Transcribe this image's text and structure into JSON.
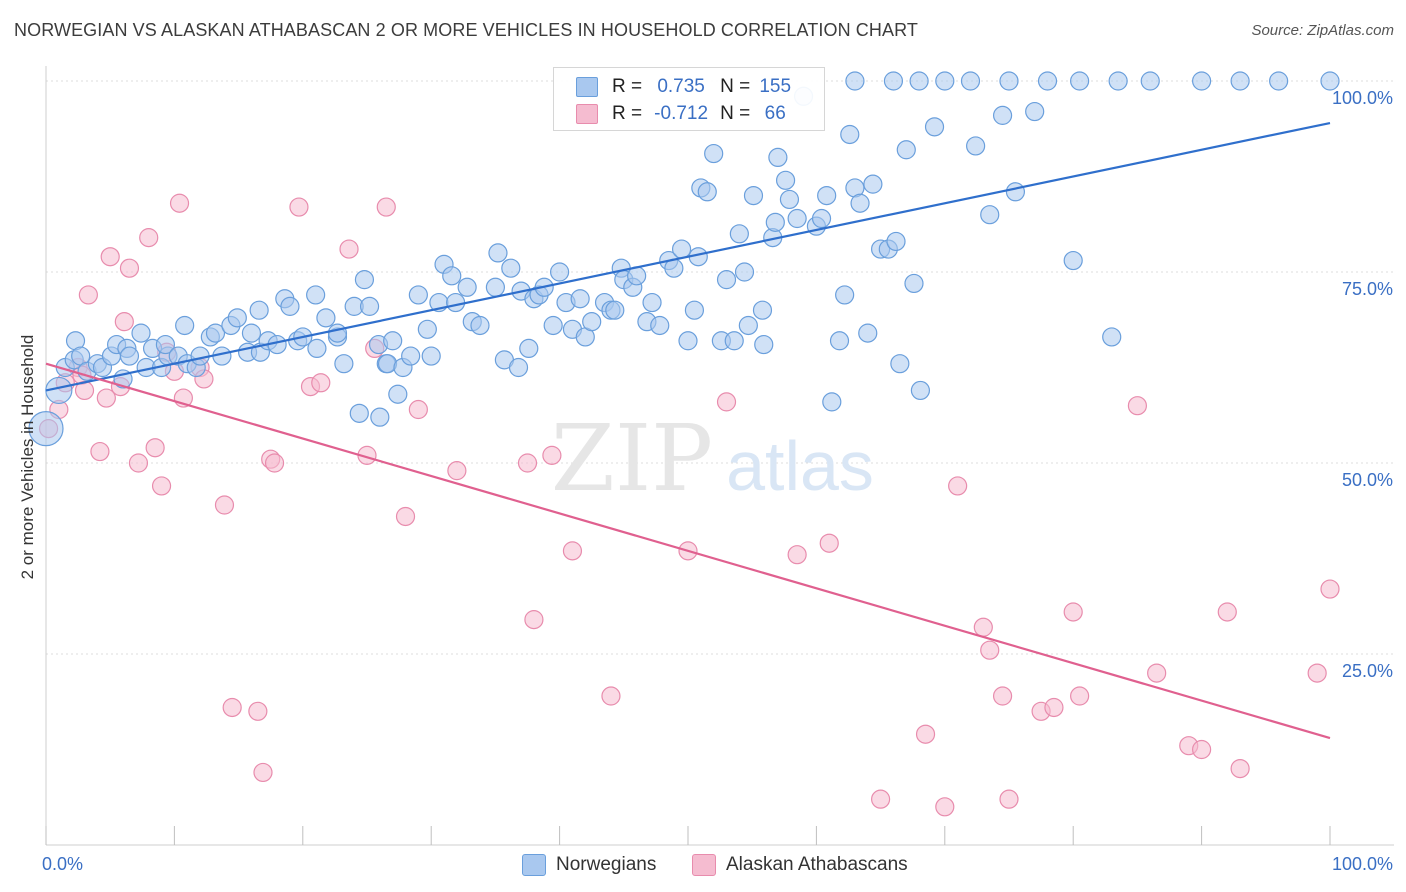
{
  "title": "NORWEGIAN VS ALASKAN ATHABASCAN 2 OR MORE VEHICLES IN HOUSEHOLD CORRELATION CHART",
  "source": "Source: ZipAtlas.com",
  "watermark": {
    "zip": "ZIP",
    "atlas": "atlas"
  },
  "colors": {
    "blue_fill": "#a9c8ef",
    "blue_stroke": "#6a9fdc",
    "blue_line": "#2f6fcc",
    "pink_fill": "#f5bcd0",
    "pink_stroke": "#e88cad",
    "pink_line": "#e0608f",
    "axis_label": "#3a6fc4",
    "grid": "#dddddd"
  },
  "legend": {
    "rows": [
      {
        "r_label": "R =",
        "r_value": "0.735",
        "n_label": "N =",
        "n_value": "155",
        "color": "#a9c8ef",
        "border": "#6a9fdc"
      },
      {
        "r_label": "R =",
        "r_value": "-0.712",
        "n_label": "N =",
        "n_value": "66",
        "color": "#f5bcd0",
        "border": "#e88cad"
      }
    ]
  },
  "bottom_legend": {
    "series1": "Norwegians",
    "series2": "Alaskan Athabascans"
  },
  "chart_data": {
    "type": "scatter",
    "title": "NORWEGIAN VS ALASKAN ATHABASCAN 2 OR MORE VEHICLES IN HOUSEHOLD CORRELATION CHART",
    "xlabel": "",
    "ylabel": "2 or more Vehicles in Household",
    "xlim": [
      0,
      100
    ],
    "ylim": [
      0,
      105
    ],
    "x_tick_labels": [
      "0.0%",
      "100.0%"
    ],
    "y_tick_labels": [
      "100.0%",
      "75.0%",
      "50.0%",
      "25.0%"
    ],
    "y_ticks": [
      100,
      75,
      50,
      25
    ],
    "grid": true,
    "legend_position": "top-center",
    "series": [
      {
        "name": "Norwegians",
        "r": 0.735,
        "n": 155,
        "trend": {
          "x": [
            0,
            100
          ],
          "y": [
            59.5,
            94.5
          ]
        },
        "points": [
          [
            1,
            59.5
          ],
          [
            1.5,
            62.5
          ],
          [
            2.2,
            63.5
          ],
          [
            2.3,
            66
          ],
          [
            2.7,
            64
          ],
          [
            3.2,
            62
          ],
          [
            4,
            63
          ],
          [
            4.4,
            62.5
          ],
          [
            5.1,
            64
          ],
          [
            6,
            61
          ],
          [
            5.5,
            65.5
          ],
          [
            6.3,
            65
          ],
          [
            6.5,
            64
          ],
          [
            7.4,
            67
          ],
          [
            7.8,
            62.5
          ],
          [
            8.3,
            65
          ],
          [
            9,
            62.5
          ],
          [
            9.5,
            64
          ],
          [
            9.3,
            65.5
          ],
          [
            10.3,
            64
          ],
          [
            10.8,
            68
          ],
          [
            11,
            63
          ],
          [
            11.7,
            62.5
          ],
          [
            12,
            64
          ],
          [
            12.8,
            66.5
          ],
          [
            13.2,
            67
          ],
          [
            13.7,
            64
          ],
          [
            14.4,
            68
          ],
          [
            14.9,
            69
          ],
          [
            15.7,
            64.5
          ],
          [
            16,
            67
          ],
          [
            16.6,
            70
          ],
          [
            16.7,
            64.5
          ],
          [
            17.3,
            66
          ],
          [
            18,
            65.5
          ],
          [
            18.6,
            71.5
          ],
          [
            19,
            70.5
          ],
          [
            19.6,
            66
          ],
          [
            20,
            66.5
          ],
          [
            21,
            72
          ],
          [
            21.1,
            65
          ],
          [
            21.8,
            69
          ],
          [
            22.7,
            66.5
          ],
          [
            22.7,
            67
          ],
          [
            23.2,
            63
          ],
          [
            24,
            70.5
          ],
          [
            24.4,
            56.5
          ],
          [
            24.8,
            74
          ],
          [
            25.2,
            70.5
          ],
          [
            25.9,
            65.5
          ],
          [
            26,
            56
          ],
          [
            26.5,
            63
          ],
          [
            26.6,
            63
          ],
          [
            27,
            66
          ],
          [
            27.4,
            59
          ],
          [
            27.8,
            62.5
          ],
          [
            28.4,
            64
          ],
          [
            29,
            72
          ],
          [
            29.7,
            67.5
          ],
          [
            30,
            64
          ],
          [
            30.6,
            71
          ],
          [
            31,
            76
          ],
          [
            31.6,
            74.5
          ],
          [
            31.9,
            71
          ],
          [
            32.8,
            73
          ],
          [
            33.2,
            68.5
          ],
          [
            33.8,
            68
          ],
          [
            35,
            73
          ],
          [
            35.2,
            77.5
          ],
          [
            35.7,
            63.5
          ],
          [
            36.2,
            75.5
          ],
          [
            36.8,
            62.5
          ],
          [
            37,
            72.5
          ],
          [
            37.6,
            65
          ],
          [
            38,
            71.5
          ],
          [
            38.4,
            72
          ],
          [
            38.8,
            73
          ],
          [
            39.5,
            68
          ],
          [
            40,
            75
          ],
          [
            40.5,
            71
          ],
          [
            41,
            67.5
          ],
          [
            41.6,
            71.5
          ],
          [
            42,
            66.5
          ],
          [
            42.5,
            68.5
          ],
          [
            43.5,
            71
          ],
          [
            44,
            70
          ],
          [
            44.3,
            70
          ],
          [
            44.8,
            75.5
          ],
          [
            45,
            74
          ],
          [
            45.7,
            73
          ],
          [
            46,
            74.5
          ],
          [
            46.8,
            68.5
          ],
          [
            47.2,
            71
          ],
          [
            47.8,
            68
          ],
          [
            48.5,
            76.5
          ],
          [
            48.9,
            75.5
          ],
          [
            49.5,
            78
          ],
          [
            50,
            66
          ],
          [
            50.5,
            70
          ],
          [
            50.8,
            77
          ],
          [
            51,
            86
          ],
          [
            51.5,
            85.5
          ],
          [
            52,
            90.5
          ],
          [
            52.6,
            66
          ],
          [
            53,
            74
          ],
          [
            53.6,
            66
          ],
          [
            54,
            80
          ],
          [
            54.4,
            75
          ],
          [
            54.7,
            68
          ],
          [
            55.1,
            85
          ],
          [
            55.8,
            70
          ],
          [
            55.9,
            65.5
          ],
          [
            56.6,
            79.5
          ],
          [
            56.8,
            81.5
          ],
          [
            57,
            90
          ],
          [
            57.6,
            87
          ],
          [
            57.9,
            84.5
          ],
          [
            58.5,
            82
          ],
          [
            59,
            98
          ],
          [
            60,
            81
          ],
          [
            60.4,
            82
          ],
          [
            60.8,
            85
          ],
          [
            61.2,
            58
          ],
          [
            61.8,
            66
          ],
          [
            62.2,
            72
          ],
          [
            62.6,
            93
          ],
          [
            63,
            86
          ],
          [
            63.4,
            84
          ],
          [
            64,
            67
          ],
          [
            64.4,
            86.5
          ],
          [
            65,
            78
          ],
          [
            65.6,
            78
          ],
          [
            66.2,
            79
          ],
          [
            66.5,
            63
          ],
          [
            67,
            91
          ],
          [
            67.6,
            73.5
          ],
          [
            68.1,
            59.5
          ],
          [
            69.2,
            94
          ],
          [
            72.4,
            91.5
          ],
          [
            73.5,
            82.5
          ],
          [
            74.5,
            95.5
          ],
          [
            75.5,
            85.5
          ],
          [
            77,
            96
          ],
          [
            80,
            76.5
          ],
          [
            83,
            66.5
          ],
          [
            63,
            100
          ],
          [
            66,
            100
          ],
          [
            68,
            100
          ],
          [
            70,
            100
          ],
          [
            72,
            100
          ],
          [
            75,
            100
          ],
          [
            78,
            100
          ],
          [
            80.5,
            100
          ],
          [
            83.5,
            100
          ],
          [
            86,
            100
          ],
          [
            90,
            100
          ],
          [
            93,
            100
          ],
          [
            96,
            100
          ],
          [
            100,
            100
          ]
        ]
      },
      {
        "name": "Alaskan Athabascans",
        "r": -0.712,
        "n": 66,
        "trend": {
          "x": [
            0,
            100
          ],
          "y": [
            63,
            14
          ]
        },
        "points": [
          [
            0.2,
            54.5
          ],
          [
            1,
            57
          ],
          [
            1.5,
            60.5
          ],
          [
            2.5,
            62.5
          ],
          [
            2.8,
            61.5
          ],
          [
            3,
            59.5
          ],
          [
            3.3,
            72
          ],
          [
            4.2,
            51.5
          ],
          [
            4.7,
            58.5
          ],
          [
            5,
            77
          ],
          [
            5.8,
            60
          ],
          [
            6.1,
            68.5
          ],
          [
            6.5,
            75.5
          ],
          [
            7.2,
            50
          ],
          [
            8,
            79.5
          ],
          [
            8.5,
            52
          ],
          [
            9,
            47
          ],
          [
            9.4,
            64.5
          ],
          [
            10,
            62
          ],
          [
            10.4,
            84
          ],
          [
            10.7,
            58.5
          ],
          [
            12,
            62.5
          ],
          [
            12.3,
            61
          ],
          [
            13.9,
            44.5
          ],
          [
            14.5,
            18
          ],
          [
            16.5,
            17.5
          ],
          [
            16.9,
            9.5
          ],
          [
            17.5,
            50.5
          ],
          [
            17.8,
            50
          ],
          [
            19.7,
            83.5
          ],
          [
            20.6,
            60
          ],
          [
            21.4,
            60.5
          ],
          [
            23.6,
            78
          ],
          [
            25,
            51
          ],
          [
            25.6,
            65
          ],
          [
            26.5,
            83.5
          ],
          [
            28,
            43
          ],
          [
            29,
            57
          ],
          [
            32,
            49
          ],
          [
            37.5,
            50
          ],
          [
            38,
            29.5
          ],
          [
            39.4,
            51
          ],
          [
            41,
            38.5
          ],
          [
            44,
            19.5
          ],
          [
            50,
            38.5
          ],
          [
            53,
            58
          ],
          [
            58.5,
            38
          ],
          [
            61,
            39.5
          ],
          [
            65,
            6
          ],
          [
            68.5,
            14.5
          ],
          [
            70,
            5
          ],
          [
            71,
            47
          ],
          [
            73,
            28.5
          ],
          [
            73.5,
            25.5
          ],
          [
            74.5,
            19.5
          ],
          [
            75,
            6
          ],
          [
            77.5,
            17.5
          ],
          [
            78.5,
            18
          ],
          [
            80,
            30.5
          ],
          [
            80.5,
            19.5
          ],
          [
            85,
            57.5
          ],
          [
            86.5,
            22.5
          ],
          [
            89,
            13
          ],
          [
            90,
            12.5
          ],
          [
            92,
            30.5
          ],
          [
            93,
            10
          ],
          [
            99,
            22.5
          ],
          [
            100,
            33.5
          ]
        ]
      }
    ]
  }
}
